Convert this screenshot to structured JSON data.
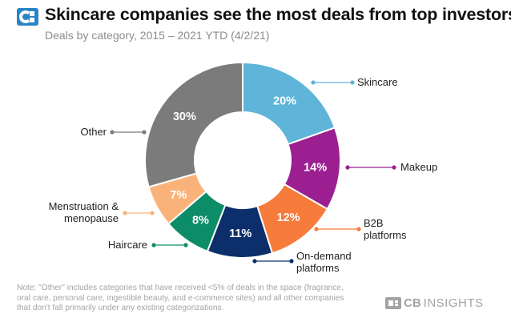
{
  "header": {
    "title": "Skincare companies see the most deals from top investors",
    "subtitle": "Deals by category, 2015 – 2021 YTD (4/2/21)"
  },
  "colors": {
    "logo": "#2a84c6",
    "ring_hole": "#ffffff",
    "slice_label": "#ffffff",
    "category_text": "#222222"
  },
  "chart_data": {
    "type": "pie",
    "style": "donut",
    "title": "Skincare companies see the most deals from top investors",
    "subtitle": "Deals by category, 2015 – 2021 YTD (4/2/21)",
    "unit": "%",
    "slices": [
      {
        "category": "Skincare",
        "value": 20,
        "value_label": "20%",
        "color": "#5fb4d9",
        "category_lines": [
          "Skincare"
        ]
      },
      {
        "category": "Makeup",
        "value": 14,
        "value_label": "14%",
        "color": "#9b1f90",
        "category_lines": [
          "Makeup"
        ]
      },
      {
        "category": "B2B platforms",
        "value": 12,
        "value_label": "12%",
        "color": "#f77b3a",
        "category_lines": [
          "B2B",
          "platforms"
        ]
      },
      {
        "category": "On-demand platforms",
        "value": 11,
        "value_label": "11%",
        "color": "#0c2e6b",
        "category_lines": [
          "On-demand",
          "platforms"
        ]
      },
      {
        "category": "Haircare",
        "value": 8,
        "value_label": "8%",
        "color": "#0d8c68",
        "category_lines": [
          "Haircare"
        ]
      },
      {
        "category": "Menstruation & menopause",
        "value": 7,
        "value_label": "7%",
        "color": "#f9b37a",
        "category_lines": [
          "Menstruation &",
          "menopause"
        ]
      },
      {
        "category": "Other",
        "value": 30,
        "value_label": "30%",
        "color": "#7b7b7b",
        "category_lines": [
          "Other"
        ]
      }
    ]
  },
  "footer": {
    "note": "Note: \"Other\" includes categories that have received <5% of deals in the space (fragrance, oral care, personal care, ingestible beauty, and e-commerce sites) and all other companies that don't fall primarily under any existing categorizations.",
    "brand_cb": "CB",
    "brand_rest": "INSIGHTS"
  }
}
